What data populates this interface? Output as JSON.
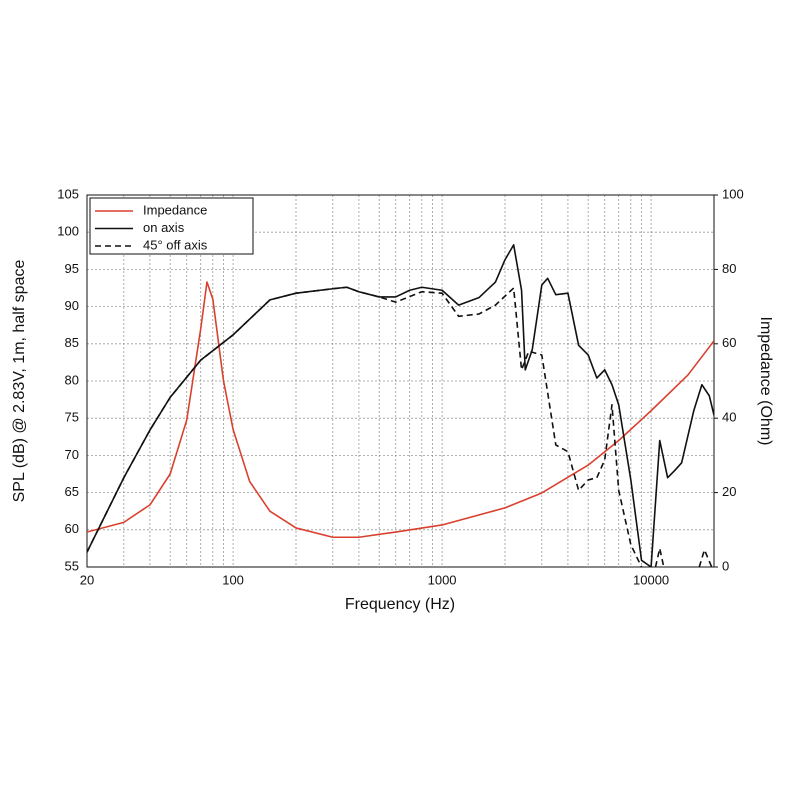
{
  "chart_data": {
    "type": "line",
    "xlabel": "Frequency (Hz)",
    "ylabel": "SPL (dB) @ 2.83V, 1m, half space",
    "y2label": "Impedance (Ohm)",
    "xscale": "log",
    "xlim": [
      20,
      20000
    ],
    "xticks": [
      20,
      100,
      1000,
      10000
    ],
    "xminorticks": [
      30,
      40,
      50,
      60,
      70,
      80,
      90,
      200,
      300,
      400,
      500,
      600,
      700,
      800,
      900,
      2000,
      3000,
      4000,
      5000,
      6000,
      7000,
      8000,
      9000
    ],
    "ylim": [
      55,
      105
    ],
    "yticks": [
      55,
      60,
      65,
      70,
      75,
      80,
      85,
      90,
      95,
      100,
      105
    ],
    "y2lim": [
      0,
      100
    ],
    "y2ticks": [
      0,
      20,
      40,
      60,
      80,
      100
    ],
    "grid": true,
    "legend": "upper left",
    "series": [
      {
        "name": "Impedance",
        "color": "#d9412e",
        "axis": "y2",
        "linestyle": "solid",
        "x": [
          20,
          30,
          40,
          50,
          60,
          70,
          75,
          80,
          90,
          100,
          120,
          150,
          200,
          300,
          400,
          600,
          1000,
          2000,
          3000,
          5000,
          7000,
          10000,
          15000,
          20000
        ],
        "values": [
          9.4,
          12,
          16.7,
          25,
          39.5,
          64,
          76.6,
          72,
          50,
          37,
          23,
          15,
          10.5,
          8,
          8,
          9.4,
          11.3,
          15.9,
          19.9,
          27.4,
          34,
          42,
          51.6,
          60.8
        ]
      },
      {
        "name": "on axis",
        "color": "#111111",
        "axis": "y",
        "linestyle": "solid",
        "x": [
          20,
          30,
          40,
          50,
          70,
          100,
          150,
          200,
          300,
          350,
          400,
          500,
          600,
          700,
          800,
          1000,
          1200,
          1500,
          1800,
          2000,
          2200,
          2400,
          2500,
          2700,
          3000,
          3200,
          3500,
          4000,
          4500,
          5000,
          5500,
          6000,
          6500,
          7000,
          8000,
          9000,
          10000,
          11000,
          12000,
          13000,
          14000,
          16000,
          17500,
          19000,
          20000
        ],
        "values": [
          57,
          67,
          73.4,
          77.8,
          82.8,
          86.2,
          90.9,
          91.8,
          92.4,
          92.6,
          92,
          91.3,
          91.3,
          92.2,
          92.6,
          92.2,
          90.2,
          91.2,
          93.3,
          96.3,
          98.3,
          92.2,
          81.5,
          84.2,
          92.9,
          93.8,
          91.6,
          91.8,
          84.8,
          83.5,
          80.4,
          81.5,
          79.5,
          76.8,
          66.7,
          55.9,
          55,
          72,
          67,
          68,
          69,
          76,
          79.5,
          78,
          75.4
        ]
      },
      {
        "name": "45° off axis",
        "color": "#111111",
        "axis": "y",
        "linestyle": "dashed",
        "x": [
          20,
          30,
          40,
          50,
          70,
          100,
          150,
          200,
          300,
          350,
          400,
          500,
          600,
          800,
          1000,
          1200,
          1500,
          1800,
          2200,
          2400,
          2600,
          3000,
          3500,
          4000,
          4500,
          5000,
          5500,
          6000,
          6500,
          7000,
          8000,
          9000,
          10000,
          10500,
          11000,
          11500,
          14000,
          17000,
          18000,
          19500
        ],
        "values": [
          57,
          67,
          73.4,
          77.8,
          82.8,
          86.2,
          90.9,
          91.8,
          92.4,
          92.6,
          92,
          91.3,
          90.6,
          92,
          91.8,
          88.7,
          89,
          90.2,
          92.5,
          81.5,
          84,
          83.5,
          71.4,
          70.5,
          65.3,
          66.7,
          67,
          69.4,
          76.8,
          65.3,
          58,
          55,
          null,
          55,
          57.5,
          55,
          null,
          55,
          57.3,
          55
        ]
      }
    ]
  }
}
